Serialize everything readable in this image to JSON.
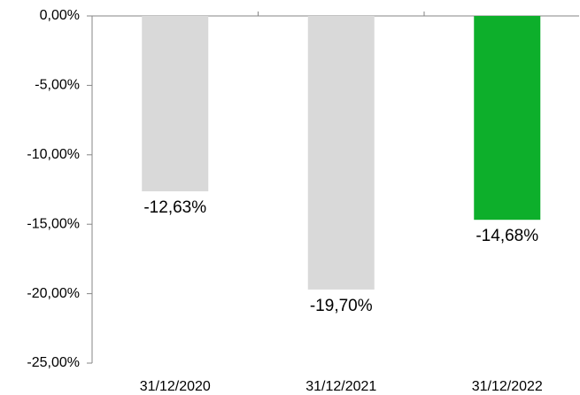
{
  "chart_data": {
    "type": "bar",
    "categories": [
      "31/12/2020",
      "31/12/2021",
      "31/12/2022"
    ],
    "values": [
      -12.63,
      -19.7,
      -14.68
    ],
    "value_labels": [
      "-12,63%",
      "-19,70%",
      "-14,68%"
    ],
    "colors": [
      "#d9d9d9",
      "#d9d9d9",
      "#0daf2b"
    ],
    "ylim": [
      -25,
      0
    ],
    "yticks": [
      {
        "value": 0,
        "label": "0,00%"
      },
      {
        "value": -5,
        "label": "-5,00%"
      },
      {
        "value": -10,
        "label": "-10,00%"
      },
      {
        "value": -15,
        "label": "-15,00%"
      },
      {
        "value": -20,
        "label": "-20,00%"
      },
      {
        "value": -25,
        "label": "-25,00%"
      }
    ],
    "grid": false
  }
}
